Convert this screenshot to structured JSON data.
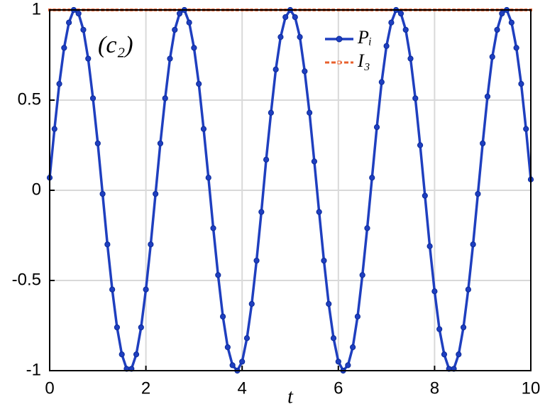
{
  "chart_data": {
    "type": "line",
    "annotation": "(c₂)",
    "x_label": "t",
    "xlim": [
      0,
      10
    ],
    "ylim": [
      -1,
      1
    ],
    "xticks": [
      0,
      2,
      4,
      6,
      8,
      10
    ],
    "yticks": [
      -1,
      -0.5,
      0,
      0.5,
      1
    ],
    "grid": true,
    "legend_position": "upper-center",
    "x": [
      0,
      0.1,
      0.2,
      0.3,
      0.4,
      0.5,
      0.6,
      0.7,
      0.8,
      0.9,
      1,
      1.1,
      1.2,
      1.3,
      1.4,
      1.5,
      1.6,
      1.7,
      1.8,
      1.9,
      2,
      2.1,
      2.2,
      2.3,
      2.4,
      2.5,
      2.6,
      2.7,
      2.8,
      2.9,
      3,
      3.1,
      3.2,
      3.3,
      3.4,
      3.5,
      3.6,
      3.7,
      3.8,
      3.9,
      4,
      4.1,
      4.2,
      4.3,
      4.4,
      4.5,
      4.6,
      4.7,
      4.8,
      4.9,
      5,
      5.1,
      5.2,
      5.3,
      5.4,
      5.5,
      5.6,
      5.7,
      5.8,
      5.9,
      6,
      6.1,
      6.2,
      6.3,
      6.4,
      6.5,
      6.6,
      6.7,
      6.8,
      6.9,
      7,
      7.1,
      7.2,
      7.3,
      7.4,
      7.5,
      7.6,
      7.7,
      7.8,
      7.9,
      8,
      8.1,
      8.2,
      8.3,
      8.4,
      8.5,
      8.6,
      8.7,
      8.8,
      8.9,
      9,
      9.1,
      9.2,
      9.3,
      9.4,
      9.5,
      9.6,
      9.7,
      9.8,
      9.9,
      10
    ],
    "series": [
      {
        "name": "Pᵢ",
        "color": "#1f3fbf",
        "style": "solid",
        "values": [
          0.07,
          0.34,
          0.59,
          0.79,
          0.93,
          1,
          0.98,
          0.89,
          0.73,
          0.51,
          0.26,
          -0.02,
          -0.3,
          -0.55,
          -0.76,
          -0.91,
          -0.99,
          -0.99,
          -0.91,
          -0.76,
          -0.55,
          -0.3,
          -0.02,
          0.26,
          0.51,
          0.73,
          0.89,
          0.98,
          1,
          0.93,
          0.79,
          0.59,
          0.34,
          0.07,
          -0.21,
          -0.47,
          -0.7,
          -0.87,
          -0.97,
          -1,
          -0.95,
          -0.82,
          -0.63,
          -0.39,
          -0.12,
          0.17,
          0.43,
          0.67,
          0.85,
          0.96,
          1,
          0.96,
          0.85,
          0.66,
          0.43,
          0.16,
          -0.12,
          -0.39,
          -0.63,
          -0.82,
          -0.95,
          -1,
          -0.97,
          -0.87,
          -0.7,
          -0.47,
          -0.21,
          0.07,
          0.35,
          0.6,
          0.8,
          0.93,
          1,
          0.98,
          0.89,
          0.73,
          0.51,
          0.25,
          -0.03,
          -0.31,
          -0.56,
          -0.77,
          -0.91,
          -0.99,
          -0.99,
          -0.91,
          -0.76,
          -0.55,
          -0.3,
          -0.02,
          0.26,
          0.52,
          0.74,
          0.89,
          0.98,
          1,
          0.93,
          0.79,
          0.59,
          0.34,
          0.06
        ]
      },
      {
        "name": "I₃",
        "color": "#e8602c",
        "style": "dashed",
        "values": [
          1,
          1,
          1,
          1,
          1,
          1,
          1,
          1,
          1,
          1,
          1,
          1,
          1,
          1,
          1,
          1,
          1,
          1,
          1,
          1,
          1,
          1,
          1,
          1,
          1,
          1,
          1,
          1,
          1,
          1,
          1,
          1,
          1,
          1,
          1,
          1,
          1,
          1,
          1,
          1,
          1,
          1,
          1,
          1,
          1,
          1,
          1,
          1,
          1,
          1,
          1,
          1,
          1,
          1,
          1,
          1,
          1,
          1,
          1,
          1,
          1,
          1,
          1,
          1,
          1,
          1,
          1,
          1,
          1,
          1,
          1,
          1,
          1,
          1,
          1,
          1,
          1,
          1,
          1,
          1,
          1,
          1,
          1,
          1,
          1,
          1,
          1,
          1,
          1,
          1,
          1,
          1,
          1,
          1,
          1,
          1,
          1,
          1,
          1,
          1,
          1
        ]
      }
    ]
  }
}
